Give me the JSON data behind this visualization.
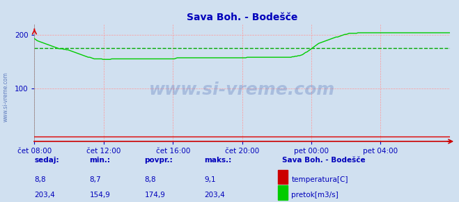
{
  "title": "Sava Boh. - Bodešče",
  "bg_color": "#d0e0f0",
  "plot_bg_color": "#d0e0f0",
  "grid_color": "#ff9999",
  "xlim": [
    0,
    288
  ],
  "ylim": [
    0,
    220
  ],
  "yticks": [
    100,
    200
  ],
  "xtick_labels": [
    "čet 08:00",
    "čet 12:00",
    "čet 16:00",
    "čet 20:00",
    "pet 00:00",
    "pet 04:00"
  ],
  "xtick_positions": [
    0,
    48,
    96,
    144,
    192,
    240
  ],
  "flow_color": "#00cc00",
  "temp_color": "#dd0000",
  "avg_flow_color": "#00aa00",
  "watermark": "www.si-vreme.com",
  "legend_title": "Sava Boh. - Bodešče",
  "sedaj_label": "sedaj:",
  "min_label": "min.:",
  "povpr_label": "povpr.:",
  "maks_label": "maks.:",
  "temp_sedaj": "8,8",
  "temp_min": "8,7",
  "temp_povpr": "8,8",
  "temp_maks": "9,1",
  "flow_sedaj": "203,4",
  "flow_min": "154,9",
  "flow_povpr": "174,9",
  "flow_maks": "203,4",
  "temp_label": "temperatura[C]",
  "flow_label": "pretok[m3/s]",
  "avg_flow_value": 174.9,
  "flow_data": [
    193,
    191,
    189,
    188,
    187,
    186,
    185,
    184,
    183,
    182,
    181,
    180,
    179,
    178,
    177,
    176,
    175,
    174,
    174,
    174,
    173,
    173,
    172,
    172,
    171,
    170,
    169,
    168,
    167,
    166,
    165,
    164,
    163,
    162,
    161,
    160,
    159,
    158,
    158,
    157,
    156,
    155,
    155,
    155,
    155,
    155,
    155,
    154,
    154,
    154,
    154,
    154,
    154,
    155,
    155,
    155,
    155,
    155,
    155,
    155,
    155,
    155,
    155,
    155,
    155,
    155,
    155,
    155,
    155,
    155,
    155,
    155,
    155,
    155,
    155,
    155,
    155,
    155,
    155,
    155,
    155,
    155,
    155,
    155,
    155,
    155,
    155,
    155,
    155,
    155,
    155,
    155,
    155,
    155,
    155,
    155,
    155,
    156,
    157,
    157,
    157,
    157,
    157,
    157,
    157,
    157,
    157,
    157,
    157,
    157,
    157,
    157,
    157,
    157,
    157,
    157,
    157,
    157,
    157,
    157,
    157,
    157,
    157,
    157,
    157,
    157,
    157,
    157,
    157,
    157,
    157,
    157,
    157,
    157,
    157,
    157,
    157,
    157,
    157,
    157,
    157,
    157,
    157,
    157,
    157,
    157,
    158,
    158,
    158,
    158,
    158,
    158,
    158,
    158,
    158,
    158,
    158,
    158,
    158,
    158,
    158,
    158,
    158,
    158,
    158,
    158,
    158,
    158,
    158,
    158,
    158,
    158,
    158,
    158,
    158,
    158,
    158,
    159,
    159,
    160,
    160,
    161,
    161,
    162,
    163,
    165,
    167,
    168,
    170,
    172,
    174,
    176,
    178,
    180,
    182,
    184,
    185,
    186,
    187,
    188,
    189,
    190,
    191,
    192,
    193,
    194,
    195,
    196,
    196,
    197,
    198,
    199,
    200,
    201,
    201,
    202,
    203,
    203,
    203,
    203,
    203,
    203,
    204,
    204,
    204,
    204,
    204,
    204,
    204,
    204,
    204,
    204,
    204,
    204,
    204,
    204,
    204,
    204,
    204,
    204,
    204,
    204,
    204,
    204,
    204,
    204,
    204,
    204,
    204,
    204,
    204,
    204,
    204,
    204,
    204,
    204,
    204,
    204,
    204,
    204,
    204,
    204,
    204,
    204,
    204,
    204,
    204,
    204,
    204,
    204,
    204,
    204,
    204,
    204,
    204,
    204,
    204,
    204,
    204,
    204,
    204,
    204,
    204,
    204,
    204,
    204
  ]
}
